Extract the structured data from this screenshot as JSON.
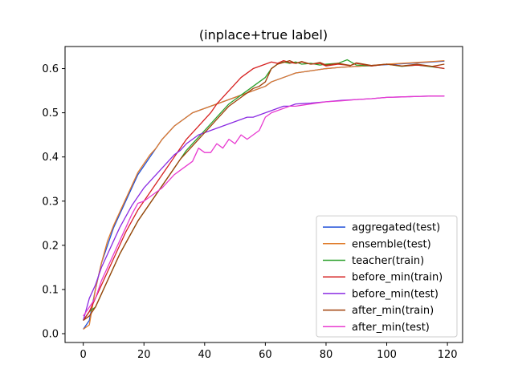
{
  "chart_data": {
    "type": "line",
    "title": "(inplace+true label)",
    "xlabel": "",
    "ylabel": "",
    "xlim": [
      -6,
      125
    ],
    "ylim": [
      -0.02,
      0.65
    ],
    "xticks": [
      0,
      20,
      40,
      60,
      80,
      100,
      120
    ],
    "yticks": [
      0.0,
      0.1,
      0.2,
      0.3,
      0.4,
      0.5,
      0.6
    ],
    "xtick_labels": [
      "0",
      "20",
      "40",
      "60",
      "80",
      "100",
      "120"
    ],
    "ytick_labels": [
      "0.0",
      "0.1",
      "0.2",
      "0.3",
      "0.4",
      "0.5",
      "0.6"
    ],
    "grid": false,
    "legend_position": "bottom-right",
    "series": [
      {
        "name": "aggregated(test)",
        "color": "#1f4fd8",
        "x": [
          0,
          2,
          4,
          6,
          8,
          10,
          12,
          14,
          16,
          18,
          20,
          22,
          24,
          26,
          28,
          30,
          32,
          34,
          36,
          38,
          40,
          42,
          44,
          46,
          48,
          50,
          52,
          54,
          56,
          58,
          60,
          62,
          64,
          66,
          68,
          70,
          75,
          80,
          85,
          90,
          95,
          100,
          105,
          110,
          115,
          119
        ],
        "y": [
          0.01,
          0.03,
          0.1,
          0.16,
          0.2,
          0.24,
          0.27,
          0.3,
          0.33,
          0.36,
          0.38,
          0.4,
          0.42,
          0.44,
          0.455,
          0.47,
          0.48,
          0.49,
          0.5,
          0.505,
          0.51,
          0.515,
          0.52,
          0.525,
          0.53,
          0.535,
          0.54,
          0.545,
          0.55,
          0.555,
          0.56,
          0.57,
          0.575,
          0.58,
          0.585,
          0.59,
          0.595,
          0.6,
          0.603,
          0.605,
          0.607,
          0.609,
          0.611,
          0.613,
          0.615,
          0.617
        ]
      },
      {
        "name": "ensemble(test)",
        "color": "#e07b2a",
        "x": [
          0,
          2,
          4,
          6,
          8,
          10,
          12,
          14,
          16,
          18,
          20,
          22,
          24,
          26,
          28,
          30,
          32,
          34,
          36,
          38,
          40,
          42,
          44,
          46,
          48,
          50,
          52,
          54,
          56,
          58,
          60,
          62,
          64,
          66,
          68,
          70,
          75,
          80,
          85,
          90,
          95,
          100,
          105,
          110,
          115,
          119
        ],
        "y": [
          0.01,
          0.02,
          0.1,
          0.16,
          0.21,
          0.245,
          0.275,
          0.305,
          0.335,
          0.365,
          0.385,
          0.405,
          0.42,
          0.44,
          0.455,
          0.47,
          0.48,
          0.49,
          0.5,
          0.505,
          0.51,
          0.515,
          0.52,
          0.525,
          0.53,
          0.535,
          0.54,
          0.545,
          0.55,
          0.555,
          0.56,
          0.57,
          0.575,
          0.58,
          0.585,
          0.59,
          0.595,
          0.6,
          0.603,
          0.605,
          0.607,
          0.61,
          0.612,
          0.614,
          0.616,
          0.618
        ]
      },
      {
        "name": "teacher(train)",
        "color": "#2ca02c",
        "x": [
          0,
          2,
          4,
          6,
          8,
          10,
          12,
          14,
          16,
          18,
          20,
          22,
          24,
          26,
          28,
          30,
          32,
          34,
          36,
          38,
          40,
          42,
          44,
          46,
          48,
          50,
          52,
          54,
          56,
          58,
          60,
          62,
          64,
          66,
          68,
          70,
          72,
          75,
          78,
          80,
          84,
          87,
          90,
          95,
          100,
          105,
          110,
          115,
          119
        ],
        "y": [
          0.03,
          0.05,
          0.06,
          0.09,
          0.12,
          0.15,
          0.18,
          0.205,
          0.23,
          0.255,
          0.275,
          0.295,
          0.315,
          0.335,
          0.355,
          0.375,
          0.395,
          0.415,
          0.43,
          0.445,
          0.46,
          0.475,
          0.49,
          0.505,
          0.52,
          0.53,
          0.54,
          0.55,
          0.56,
          0.57,
          0.58,
          0.6,
          0.61,
          0.615,
          0.612,
          0.615,
          0.61,
          0.612,
          0.608,
          0.61,
          0.612,
          0.62,
          0.608,
          0.606,
          0.61,
          0.605,
          0.608,
          0.604,
          0.6
        ]
      },
      {
        "name": "before_min(train)",
        "color": "#d62020",
        "x": [
          0,
          2,
          4,
          6,
          8,
          10,
          12,
          14,
          16,
          18,
          20,
          22,
          24,
          26,
          28,
          30,
          32,
          34,
          36,
          38,
          40,
          42,
          44,
          46,
          48,
          50,
          52,
          54,
          56,
          58,
          60,
          62,
          64,
          66,
          68,
          70,
          72,
          75,
          78,
          80,
          84,
          88,
          90,
          95,
          100,
          105,
          110,
          115,
          119
        ],
        "y": [
          0.03,
          0.05,
          0.08,
          0.11,
          0.14,
          0.17,
          0.2,
          0.23,
          0.255,
          0.28,
          0.3,
          0.32,
          0.34,
          0.36,
          0.38,
          0.4,
          0.42,
          0.44,
          0.455,
          0.47,
          0.485,
          0.5,
          0.52,
          0.535,
          0.55,
          0.565,
          0.58,
          0.59,
          0.6,
          0.605,
          0.61,
          0.615,
          0.612,
          0.618,
          0.614,
          0.612,
          0.615,
          0.61,
          0.612,
          0.606,
          0.61,
          0.607,
          0.612,
          0.606,
          0.61,
          0.606,
          0.608,
          0.605,
          0.6
        ]
      },
      {
        "name": "before_min(test)",
        "color": "#8a2be2",
        "x": [
          0,
          2,
          4,
          6,
          8,
          10,
          12,
          14,
          16,
          18,
          20,
          22,
          24,
          26,
          28,
          30,
          32,
          34,
          36,
          38,
          40,
          42,
          44,
          46,
          48,
          50,
          52,
          54,
          56,
          58,
          60,
          62,
          64,
          66,
          68,
          70,
          75,
          80,
          85,
          90,
          95,
          100,
          105,
          110,
          115,
          119
        ],
        "y": [
          0.03,
          0.08,
          0.11,
          0.15,
          0.18,
          0.21,
          0.24,
          0.265,
          0.29,
          0.31,
          0.33,
          0.345,
          0.36,
          0.375,
          0.39,
          0.405,
          0.415,
          0.43,
          0.44,
          0.45,
          0.455,
          0.46,
          0.465,
          0.47,
          0.475,
          0.48,
          0.485,
          0.49,
          0.49,
          0.495,
          0.5,
          0.505,
          0.51,
          0.515,
          0.515,
          0.52,
          0.522,
          0.525,
          0.528,
          0.53,
          0.532,
          0.535,
          0.536,
          0.537,
          0.538,
          0.538
        ]
      },
      {
        "name": "after_min(train)",
        "color": "#a0400a",
        "x": [
          0,
          2,
          4,
          6,
          8,
          10,
          12,
          14,
          16,
          18,
          20,
          22,
          24,
          26,
          28,
          30,
          32,
          34,
          36,
          38,
          40,
          42,
          44,
          46,
          48,
          50,
          52,
          54,
          56,
          58,
          60,
          62,
          64,
          66,
          68,
          70,
          72,
          75,
          78,
          80,
          84,
          88,
          90,
          95,
          100,
          105,
          110,
          115,
          119
        ],
        "y": [
          0.03,
          0.04,
          0.06,
          0.09,
          0.12,
          0.15,
          0.18,
          0.205,
          0.23,
          0.255,
          0.275,
          0.295,
          0.315,
          0.335,
          0.355,
          0.375,
          0.395,
          0.41,
          0.425,
          0.44,
          0.455,
          0.47,
          0.485,
          0.5,
          0.515,
          0.525,
          0.535,
          0.545,
          0.555,
          0.56,
          0.57,
          0.6,
          0.61,
          0.614,
          0.618,
          0.612,
          0.616,
          0.61,
          0.614,
          0.608,
          0.612,
          0.607,
          0.613,
          0.607,
          0.61,
          0.606,
          0.61,
          0.605,
          0.61
        ]
      },
      {
        "name": "after_min(test)",
        "color": "#e83ad0",
        "x": [
          0,
          2,
          4,
          6,
          8,
          10,
          12,
          14,
          16,
          18,
          20,
          22,
          24,
          26,
          28,
          30,
          32,
          34,
          36,
          38,
          40,
          42,
          44,
          46,
          48,
          50,
          52,
          54,
          56,
          58,
          60,
          62,
          64,
          66,
          68,
          70,
          75,
          80,
          85,
          90,
          95,
          100,
          105,
          110,
          115,
          119
        ],
        "y": [
          0.04,
          0.06,
          0.08,
          0.12,
          0.15,
          0.18,
          0.21,
          0.24,
          0.27,
          0.295,
          0.3,
          0.31,
          0.32,
          0.33,
          0.345,
          0.36,
          0.37,
          0.38,
          0.39,
          0.42,
          0.41,
          0.41,
          0.43,
          0.42,
          0.44,
          0.43,
          0.45,
          0.44,
          0.45,
          0.46,
          0.49,
          0.5,
          0.505,
          0.51,
          0.515,
          0.515,
          0.52,
          0.525,
          0.527,
          0.53,
          0.532,
          0.535,
          0.536,
          0.537,
          0.538,
          0.538
        ]
      }
    ]
  }
}
